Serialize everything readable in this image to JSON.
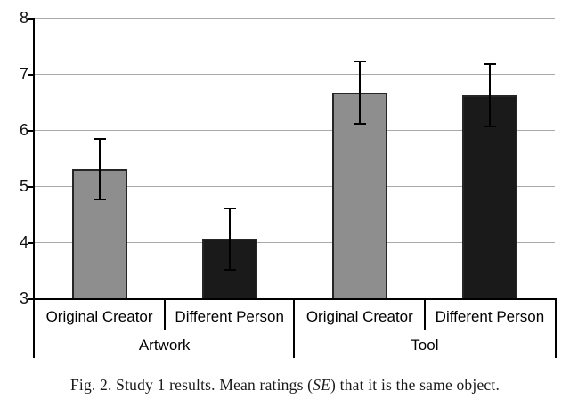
{
  "caption": {
    "prefix": "Fig. 2.  Study 1 results. Mean ratings (",
    "italic_term": "SE",
    "suffix": ") that it is the same object."
  },
  "chart_data": {
    "type": "bar",
    "title": "",
    "xlabel": "",
    "ylabel": "",
    "ylim": [
      3,
      8
    ],
    "yticks": [
      3,
      4,
      5,
      6,
      7,
      8
    ],
    "grid": true,
    "legend": "none",
    "groups": [
      {
        "label": "Artwork",
        "bars": [
          {
            "label": "Original Creator",
            "value": 5.3,
            "se": 0.54,
            "fill": "gray"
          },
          {
            "label": "Different Person",
            "value": 4.06,
            "se": 0.55,
            "fill": "black"
          }
        ]
      },
      {
        "label": "Tool",
        "bars": [
          {
            "label": "Original Creator",
            "value": 6.67,
            "se": 0.56,
            "fill": "gray"
          },
          {
            "label": "Different Person",
            "value": 6.62,
            "se": 0.55,
            "fill": "black"
          }
        ]
      }
    ],
    "colors": {
      "gray_bar": "#8e8e8e",
      "black_bar": "#1a1a1a",
      "bar_border": "#262626",
      "gridline": "#a9a9a9",
      "axis": "#000000"
    }
  }
}
